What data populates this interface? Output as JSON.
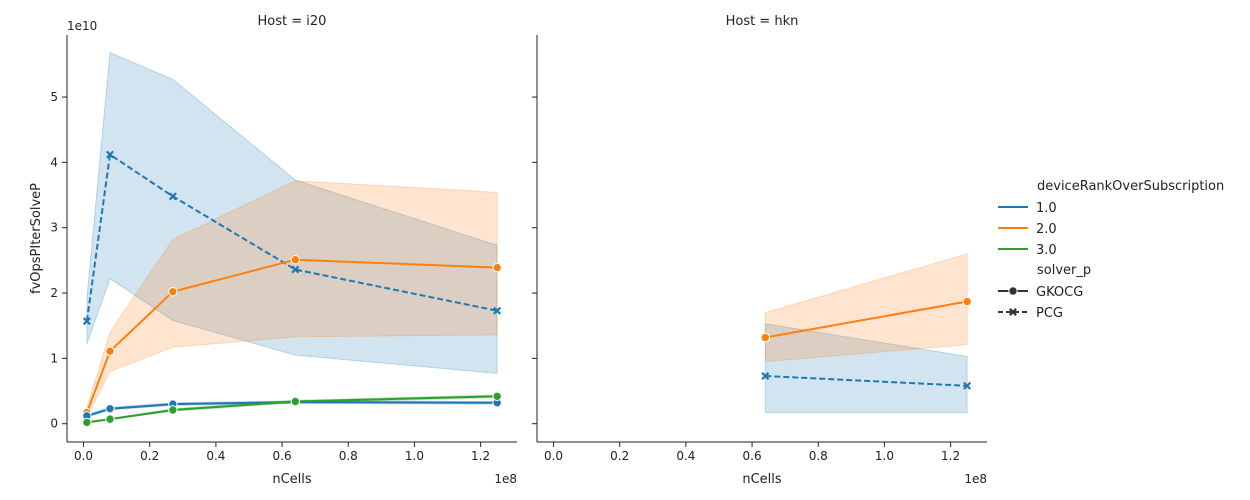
{
  "figure": {
    "x_scale_label": "1e8",
    "y_scale_label": "1e10"
  },
  "legend": {
    "hue_title": "deviceRankOverSubscription",
    "hue_items": [
      {
        "label": "1.0",
        "color": "#1f77b4"
      },
      {
        "label": "2.0",
        "color": "#ff7f0e"
      },
      {
        "label": "3.0",
        "color": "#2ca02c"
      }
    ],
    "style_title": "solver_p",
    "style_items": [
      {
        "label": "GKOCG",
        "marker": "circle",
        "dash": "solid"
      },
      {
        "label": "PCG",
        "marker": "x",
        "dash": "dashed"
      }
    ]
  },
  "chart_data": [
    {
      "type": "line",
      "title": "Host = i20",
      "xlabel": "nCells",
      "ylabel": "fvOpsPIterSolveP",
      "xlim": [
        -0.05,
        1.31
      ],
      "ylim": [
        -0.28,
        5.95
      ],
      "x_unit_note": "x in 1e8, y in 1e10",
      "xticks": [
        {
          "v": 0.0,
          "label": "0.0"
        },
        {
          "v": 0.2,
          "label": "0.2"
        },
        {
          "v": 0.4,
          "label": "0.4"
        },
        {
          "v": 0.6,
          "label": "0.6"
        },
        {
          "v": 0.8,
          "label": "0.8"
        },
        {
          "v": 1.0,
          "label": "1.0"
        },
        {
          "v": 1.2,
          "label": "1.2"
        }
      ],
      "yticks": [
        {
          "v": 0,
          "label": "0"
        },
        {
          "v": 1,
          "label": "1"
        },
        {
          "v": 2,
          "label": "2"
        },
        {
          "v": 3,
          "label": "3"
        },
        {
          "v": 4,
          "label": "4"
        },
        {
          "v": 5,
          "label": "5"
        }
      ],
      "series": [
        {
          "name": "1.0 PCG",
          "hue": "1.0",
          "solver": "PCG",
          "color": "#1f77b4",
          "dash": true,
          "marker": "x",
          "x": [
            0.01,
            0.08,
            0.27,
            0.64,
            1.25
          ],
          "y": [
            1.57,
            4.12,
            3.48,
            2.36,
            1.73
          ],
          "ci_low": [
            1.22,
            2.22,
            1.58,
            1.05,
            0.77
          ],
          "ci_high": [
            1.92,
            5.68,
            5.27,
            3.73,
            2.73
          ]
        },
        {
          "name": "2.0 GKOCG",
          "hue": "2.0",
          "solver": "GKOCG",
          "color": "#ff7f0e",
          "dash": false,
          "marker": "circle",
          "x": [
            0.01,
            0.08,
            0.27,
            0.64,
            1.25
          ],
          "y": [
            0.17,
            1.11,
            2.02,
            2.51,
            2.39
          ],
          "ci_low": [
            0.1,
            0.8,
            1.17,
            1.33,
            1.36
          ],
          "ci_high": [
            0.25,
            1.4,
            2.82,
            3.72,
            3.54
          ]
        },
        {
          "name": "1.0 GKOCG",
          "hue": "1.0",
          "solver": "GKOCG",
          "color": "#1f77b4",
          "dash": false,
          "marker": "circle",
          "x": [
            0.01,
            0.08,
            0.27,
            0.64,
            1.25
          ],
          "y": [
            0.12,
            0.23,
            0.3,
            0.33,
            0.32
          ],
          "ci_low": [
            0.1,
            0.21,
            0.28,
            0.31,
            0.3
          ],
          "ci_high": [
            0.14,
            0.25,
            0.32,
            0.35,
            0.34
          ]
        },
        {
          "name": "3.0 GKOCG",
          "hue": "3.0",
          "solver": "GKOCG",
          "color": "#2ca02c",
          "dash": false,
          "marker": "circle",
          "x": [
            0.01,
            0.08,
            0.27,
            0.64,
            1.25
          ],
          "y": [
            0.02,
            0.07,
            0.21,
            0.34,
            0.42
          ],
          "ci_low": [
            0.01,
            0.06,
            0.19,
            0.32,
            0.4
          ],
          "ci_high": [
            0.03,
            0.08,
            0.23,
            0.36,
            0.44
          ]
        }
      ]
    },
    {
      "type": "line",
      "title": "Host = hkn",
      "xlabel": "nCells",
      "ylabel": "",
      "xlim": [
        -0.05,
        1.31
      ],
      "ylim": [
        -0.28,
        5.95
      ],
      "x_unit_note": "x in 1e8, y in 1e10",
      "xticks": [
        {
          "v": 0.0,
          "label": "0.0"
        },
        {
          "v": 0.2,
          "label": "0.2"
        },
        {
          "v": 0.4,
          "label": "0.4"
        },
        {
          "v": 0.6,
          "label": "0.6"
        },
        {
          "v": 0.8,
          "label": "0.8"
        },
        {
          "v": 1.0,
          "label": "1.0"
        },
        {
          "v": 1.2,
          "label": "1.2"
        }
      ],
      "yticks": [
        {
          "v": 0,
          "label": ""
        },
        {
          "v": 1,
          "label": ""
        },
        {
          "v": 2,
          "label": ""
        },
        {
          "v": 3,
          "label": ""
        },
        {
          "v": 4,
          "label": ""
        },
        {
          "v": 5,
          "label": ""
        }
      ],
      "series": [
        {
          "name": "1.0 PCG",
          "hue": "1.0",
          "solver": "PCG",
          "color": "#1f77b4",
          "dash": true,
          "marker": "x",
          "x": [
            0.64,
            1.25
          ],
          "y": [
            0.73,
            0.58
          ],
          "ci_low": [
            0.17,
            0.17
          ],
          "ci_high": [
            1.53,
            1.03
          ]
        },
        {
          "name": "2.0 GKOCG",
          "hue": "2.0",
          "solver": "GKOCG",
          "color": "#ff7f0e",
          "dash": false,
          "marker": "circle",
          "x": [
            0.64,
            1.25
          ],
          "y": [
            1.32,
            1.87
          ],
          "ci_low": [
            0.95,
            1.21
          ],
          "ci_high": [
            1.7,
            2.6
          ]
        }
      ]
    }
  ]
}
